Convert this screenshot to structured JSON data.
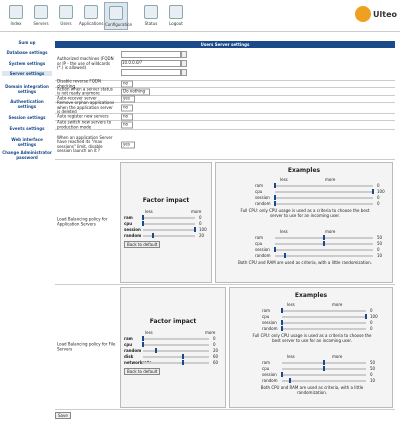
{
  "header": {
    "tabs": [
      "Index",
      "Servers",
      "Users",
      "Applications",
      "Configuration",
      "Status",
      "Logout"
    ],
    "logo": "Ulteo"
  },
  "sidebar": [
    "Sum up",
    "Database settings",
    "System settings",
    "Server settings",
    "Domain integration settings",
    "Authentication settings",
    "Session settings",
    "Events settings",
    "Web interface settings",
    "Change Administrator password"
  ],
  "panel": {
    "title": "Users Server settings",
    "rows": [
      {
        "label": "Authorized machines (FQDN or IP - the use of wildcards (*.) is allowed)",
        "inputs": [
          "",
          "10.0.0.0/?",
          ""
        ]
      },
      {
        "label": "Disable reverse FQDN checking",
        "select": "no"
      },
      {
        "label": "Action when a server status is not ready anymore",
        "select": "Do nothing"
      },
      {
        "label": "Auto-recover server",
        "select": "yes"
      },
      {
        "label": "Remove orphan applications when the application server is deleted",
        "select": "no"
      },
      {
        "label": "Auto register new servers",
        "select": "no"
      },
      {
        "label": "Auto switch new servers to production mode",
        "select": "no"
      },
      {
        "label": "When an application Server have reached its \"max sessions\" limit, disable session launch on it ?",
        "select": "yes"
      }
    ]
  },
  "load_balancing": [
    {
      "label": "Load Balancing policy for Application Servers",
      "factor_title": "Factor impact",
      "less": "less",
      "more": "more",
      "criteria": [
        {
          "name": "ram",
          "value": 0
        },
        {
          "name": "cpu",
          "value": 0
        },
        {
          "name": "session",
          "value": 100
        },
        {
          "name": "random",
          "value": 20
        }
      ],
      "reset": "Back to default",
      "examples_title": "Examples",
      "examples": [
        {
          "criteria": [
            {
              "name": "ram",
              "value": 0
            },
            {
              "name": "cpu",
              "value": 100
            },
            {
              "name": "session",
              "value": 0
            },
            {
              "name": "random",
              "value": 0
            }
          ],
          "text": "Full CPU: only CPU usage is used as a criteria to choose the best server to use for an incoming user."
        },
        {
          "criteria": [
            {
              "name": "ram",
              "value": 50
            },
            {
              "name": "cpu",
              "value": 50
            },
            {
              "name": "session",
              "value": 0
            },
            {
              "name": "random",
              "value": 10
            }
          ],
          "text": "Both CPU and RAM are used as criteria, with a little randomization."
        }
      ]
    },
    {
      "label": "Load Balancing policy for File Servers",
      "factor_title": "Factor impact",
      "less": "less",
      "more": "more",
      "criteria": [
        {
          "name": "ram",
          "value": 0
        },
        {
          "name": "cpu",
          "value": 0
        },
        {
          "name": "random",
          "value": 20
        },
        {
          "name": "disk",
          "value": 60
        },
        {
          "name": "networkrate",
          "value": 60
        }
      ],
      "reset": "Back to default",
      "examples_title": "Examples",
      "examples": [
        {
          "criteria": [
            {
              "name": "ram",
              "value": 0
            },
            {
              "name": "cpu",
              "value": 100
            },
            {
              "name": "session",
              "value": 0
            },
            {
              "name": "random",
              "value": 0
            }
          ],
          "text": "Full CPU: only CPU usage is used as a criteria to choose the best server to use for an incoming user."
        },
        {
          "criteria": [
            {
              "name": "ram",
              "value": 50
            },
            {
              "name": "cpu",
              "value": 50
            },
            {
              "name": "session",
              "value": 0
            },
            {
              "name": "random",
              "value": 10
            }
          ],
          "text": "Both CPU and RAM are used as criteria, with a little randomization."
        }
      ]
    }
  ],
  "save": "Save"
}
